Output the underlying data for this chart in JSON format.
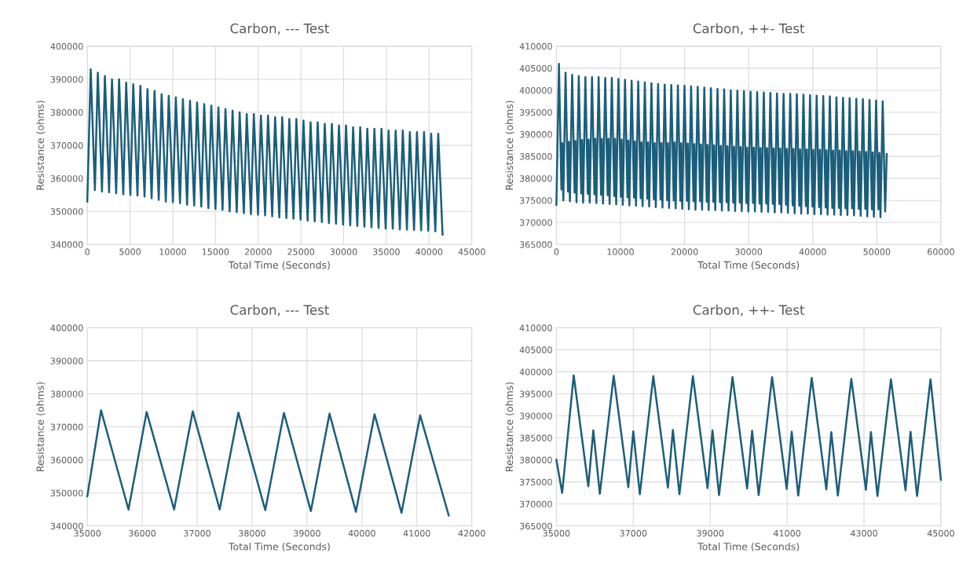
{
  "chart_data": [
    {
      "type": "line",
      "title": "Carbon, --- Test",
      "xlabel": "Total Time (Seconds)",
      "ylabel": "Resistance (ohms)",
      "grid": true,
      "legend": false,
      "xlim": [
        0,
        45000
      ],
      "xticks": [
        0,
        5000,
        10000,
        15000,
        20000,
        25000,
        30000,
        35000,
        40000,
        45000
      ],
      "ylim": [
        340000,
        400000
      ],
      "yticks": [
        340000,
        350000,
        360000,
        370000,
        380000,
        390000,
        400000
      ],
      "series": [
        {
          "color": "#1b5e7b",
          "x": [
            0,
            400,
            890,
            1230,
            1720,
            2060,
            2550,
            2890,
            3380,
            3720,
            4210,
            4550,
            5040,
            5380,
            5870,
            6210,
            6700,
            7040,
            7530,
            7870,
            8360,
            8700,
            9190,
            9530,
            10020,
            10360,
            10850,
            11190,
            11680,
            12020,
            12510,
            12850,
            13340,
            13680,
            14170,
            14510,
            15000,
            15340,
            15830,
            16170,
            16660,
            17000,
            17490,
            17830,
            18320,
            18660,
            19150,
            19490,
            19980,
            20320,
            20810,
            21150,
            21640,
            21980,
            22470,
            22810,
            23300,
            23640,
            24130,
            24470,
            24960,
            25300,
            25790,
            26130,
            26620,
            26960,
            27450,
            27790,
            28280,
            28620,
            29110,
            29450,
            29940,
            30280,
            30770,
            31110,
            31600,
            31940,
            32430,
            32770,
            33260,
            33600,
            34090,
            34430,
            34920,
            35260,
            35750,
            36090,
            36580,
            36920,
            37410,
            37750,
            38240,
            38580,
            39070,
            39410,
            39900,
            40240,
            40730,
            41070,
            41580
          ],
          "values": [
            353000,
            393000,
            356500,
            392000,
            356000,
            391000,
            355800,
            390000,
            355500,
            390000,
            355200,
            389000,
            355000,
            388500,
            354800,
            388000,
            354500,
            387000,
            354000,
            386500,
            353500,
            385500,
            353000,
            385000,
            352800,
            384500,
            352500,
            384000,
            352000,
            383500,
            351800,
            383000,
            351500,
            382500,
            351000,
            382000,
            350800,
            381500,
            350500,
            381000,
            350000,
            380500,
            349800,
            380000,
            349500,
            379500,
            349200,
            379500,
            349000,
            379000,
            348800,
            379000,
            348500,
            378500,
            348200,
            378500,
            348000,
            378000,
            347800,
            378000,
            347500,
            377500,
            347200,
            377000,
            347000,
            377000,
            346800,
            376500,
            346500,
            376500,
            346300,
            376000,
            346000,
            376000,
            345800,
            375500,
            345600,
            375500,
            345400,
            375000,
            345200,
            375000,
            345000,
            375000,
            344800,
            374500,
            344800,
            374500,
            344600,
            374500,
            344500,
            374000,
            344400,
            374000,
            344300,
            374000,
            344200,
            373500,
            344000,
            373500,
            343000
          ]
        }
      ]
    },
    {
      "type": "line",
      "title": "Carbon, ++- Test",
      "xlabel": "Total Time (Seconds)",
      "ylabel": "Resistance (ohms)",
      "grid": true,
      "legend": false,
      "xlim": [
        0,
        60000
      ],
      "xticks": [
        0,
        10000,
        20000,
        30000,
        40000,
        50000,
        60000
      ],
      "ylim": [
        365000,
        410000
      ],
      "yticks": [
        365000,
        370000,
        375000,
        380000,
        385000,
        390000,
        395000,
        400000,
        405000,
        410000
      ],
      "series": [
        {
          "color": "#1b5e7b",
          "x": [
            0,
            400,
            780,
            910,
            1080,
            1430,
            1810,
            1940,
            2110,
            2460,
            2840,
            2970,
            3140,
            3490,
            3870,
            4000,
            4170,
            4520,
            4900,
            5030,
            5200,
            5560,
            5940,
            6070,
            6240,
            6590,
            6970,
            7100,
            7270,
            7620,
            8000,
            8130,
            8300,
            8650,
            9030,
            9160,
            9330,
            9680,
            10060,
            10190,
            10360,
            10710,
            11090,
            11220,
            11390,
            11740,
            12120,
            12250,
            12420,
            12770,
            13150,
            13280,
            13450,
            13800,
            14180,
            14310,
            14480,
            14830,
            15210,
            15340,
            15510,
            15870,
            16250,
            16380,
            16550,
            16900,
            17280,
            17410,
            17580,
            17930,
            18310,
            18440,
            18610,
            18960,
            19340,
            19470,
            19640,
            19990,
            20370,
            20500,
            20670,
            21020,
            21400,
            21530,
            21700,
            22050,
            22430,
            22560,
            22730,
            23080,
            23460,
            23590,
            23760,
            24110,
            24490,
            24620,
            24790,
            25140,
            25520,
            25650,
            25820,
            26180,
            26560,
            26690,
            26860,
            27210,
            27590,
            27720,
            27890,
            28240,
            28620,
            28750,
            28920,
            29270,
            29650,
            29780,
            29950,
            30300,
            30680,
            30810,
            30980,
            31330,
            31710,
            31840,
            32010,
            32360,
            32740,
            32870,
            33040,
            33390,
            33770,
            33900,
            34070,
            34420,
            34800,
            34930,
            35100,
            35450,
            35830,
            35960,
            36130,
            36490,
            36870,
            37000,
            37170,
            37520,
            37900,
            38030,
            38200,
            38550,
            38930,
            39060,
            39230,
            39580,
            39960,
            40090,
            40260,
            40610,
            40990,
            41120,
            41290,
            41640,
            42020,
            42150,
            42320,
            42670,
            43050,
            43180,
            43350,
            43700,
            44080,
            44210,
            44380,
            44730,
            45110,
            45240,
            45410,
            45760,
            46140,
            46270,
            46440,
            46800,
            47180,
            47310,
            47480,
            47830,
            48210,
            48340,
            48510,
            48860,
            49240,
            49370,
            49540,
            49890,
            50270,
            50400,
            50570,
            50920,
            51300,
            51550
          ],
          "values": [
            374000,
            406000,
            377500,
            388000,
            375000,
            404000,
            377000,
            388300,
            374800,
            403500,
            376800,
            388500,
            374600,
            403200,
            376600,
            388700,
            374500,
            403000,
            376500,
            388800,
            374500,
            403000,
            376400,
            389000,
            374400,
            403000,
            376300,
            389000,
            374300,
            402800,
            376200,
            389000,
            374200,
            402800,
            376000,
            389000,
            374100,
            402600,
            375800,
            388800,
            374000,
            402400,
            375700,
            388600,
            373900,
            402200,
            375600,
            388400,
            373800,
            402000,
            375500,
            388200,
            373700,
            401800,
            375400,
            388200,
            373600,
            401600,
            375300,
            388000,
            373500,
            401400,
            375200,
            388000,
            373400,
            401300,
            375100,
            388000,
            373300,
            401200,
            375000,
            388200,
            373200,
            401100,
            374900,
            388000,
            373100,
            401000,
            374900,
            387900,
            373000,
            400900,
            374800,
            387800,
            372900,
            400800,
            374800,
            387700,
            372900,
            400600,
            374700,
            387600,
            372800,
            400500,
            374700,
            387500,
            372800,
            400300,
            374600,
            387400,
            372700,
            400200,
            374600,
            387300,
            372700,
            400000,
            374500,
            387200,
            372600,
            399900,
            374500,
            387100,
            372600,
            399800,
            374400,
            387000,
            372500,
            399700,
            374400,
            387000,
            372500,
            399600,
            374300,
            386900,
            372400,
            399500,
            374300,
            386900,
            372400,
            399400,
            374200,
            386800,
            372300,
            399300,
            374200,
            386800,
            372300,
            399200,
            374000,
            386700,
            372200,
            399200,
            373900,
            386700,
            372100,
            399100,
            373800,
            386600,
            372000,
            399000,
            373700,
            386600,
            372000,
            398900,
            373600,
            386500,
            371900,
            398800,
            373500,
            386500,
            371900,
            398700,
            373400,
            386400,
            371800,
            398600,
            373300,
            386300,
            371800,
            398400,
            373300,
            386300,
            371700,
            398300,
            373200,
            386200,
            371700,
            398200,
            373200,
            386200,
            371600,
            398100,
            373100,
            386100,
            371500,
            398000,
            373100,
            386000,
            371400,
            397800,
            373000,
            385900,
            371300,
            397700,
            373000,
            385800,
            371200,
            397500,
            372500,
            385500
          ]
        }
      ]
    },
    {
      "type": "line",
      "title": "Carbon, --- Test",
      "xlabel": "Total Time (Seconds)",
      "ylabel": "Resistance (ohms)",
      "grid": true,
      "legend": false,
      "xlim": [
        35000,
        42000
      ],
      "xticks": [
        35000,
        36000,
        37000,
        38000,
        39000,
        40000,
        41000,
        42000
      ],
      "ylim": [
        340000,
        400000
      ],
      "yticks": [
        340000,
        350000,
        360000,
        370000,
        380000,
        390000,
        400000
      ],
      "series": [
        {
          "color": "#1b5e7b",
          "x": [
            35000,
            35250,
            35750,
            36080,
            36580,
            36920,
            37410,
            37750,
            38240,
            38580,
            39070,
            39410,
            39890,
            40230,
            40720,
            41060,
            41580
          ],
          "values": [
            349000,
            375000,
            345000,
            374500,
            345000,
            374700,
            345000,
            374300,
            344800,
            374200,
            344500,
            374000,
            344300,
            373800,
            344000,
            373500,
            343200
          ]
        }
      ]
    },
    {
      "type": "line",
      "title": "Carbon, ++- Test",
      "xlabel": "Total Time (Seconds)",
      "ylabel": "Resistance (ohms)",
      "grid": true,
      "legend": false,
      "xlim": [
        35000,
        45000
      ],
      "xticks": [
        35000,
        37000,
        39000,
        41000,
        43000,
        45000
      ],
      "ylim": [
        365000,
        410000
      ],
      "yticks": [
        365000,
        370000,
        375000,
        380000,
        385000,
        390000,
        395000,
        400000,
        405000,
        410000
      ],
      "series": [
        {
          "color": "#1b5e7b",
          "x": [
            35000,
            35150,
            35450,
            35830,
            35960,
            36130,
            36490,
            36870,
            37000,
            37170,
            37520,
            37900,
            38030,
            38200,
            38550,
            38930,
            39060,
            39230,
            39580,
            39960,
            40090,
            40260,
            40610,
            40990,
            41120,
            41290,
            41640,
            42020,
            42150,
            42320,
            42670,
            43050,
            43180,
            43350,
            43700,
            44080,
            44210,
            44380,
            44730,
            45000
          ],
          "values": [
            380000,
            372500,
            399200,
            374000,
            386700,
            372300,
            399100,
            373800,
            386500,
            372200,
            399000,
            373700,
            386800,
            372200,
            399000,
            373600,
            386700,
            372000,
            398800,
            373500,
            386600,
            372000,
            398800,
            373400,
            386400,
            371900,
            398600,
            373300,
            386300,
            371900,
            398400,
            373200,
            386300,
            371800,
            398300,
            373100,
            386400,
            371800,
            398300,
            375500
          ]
        }
      ]
    }
  ]
}
